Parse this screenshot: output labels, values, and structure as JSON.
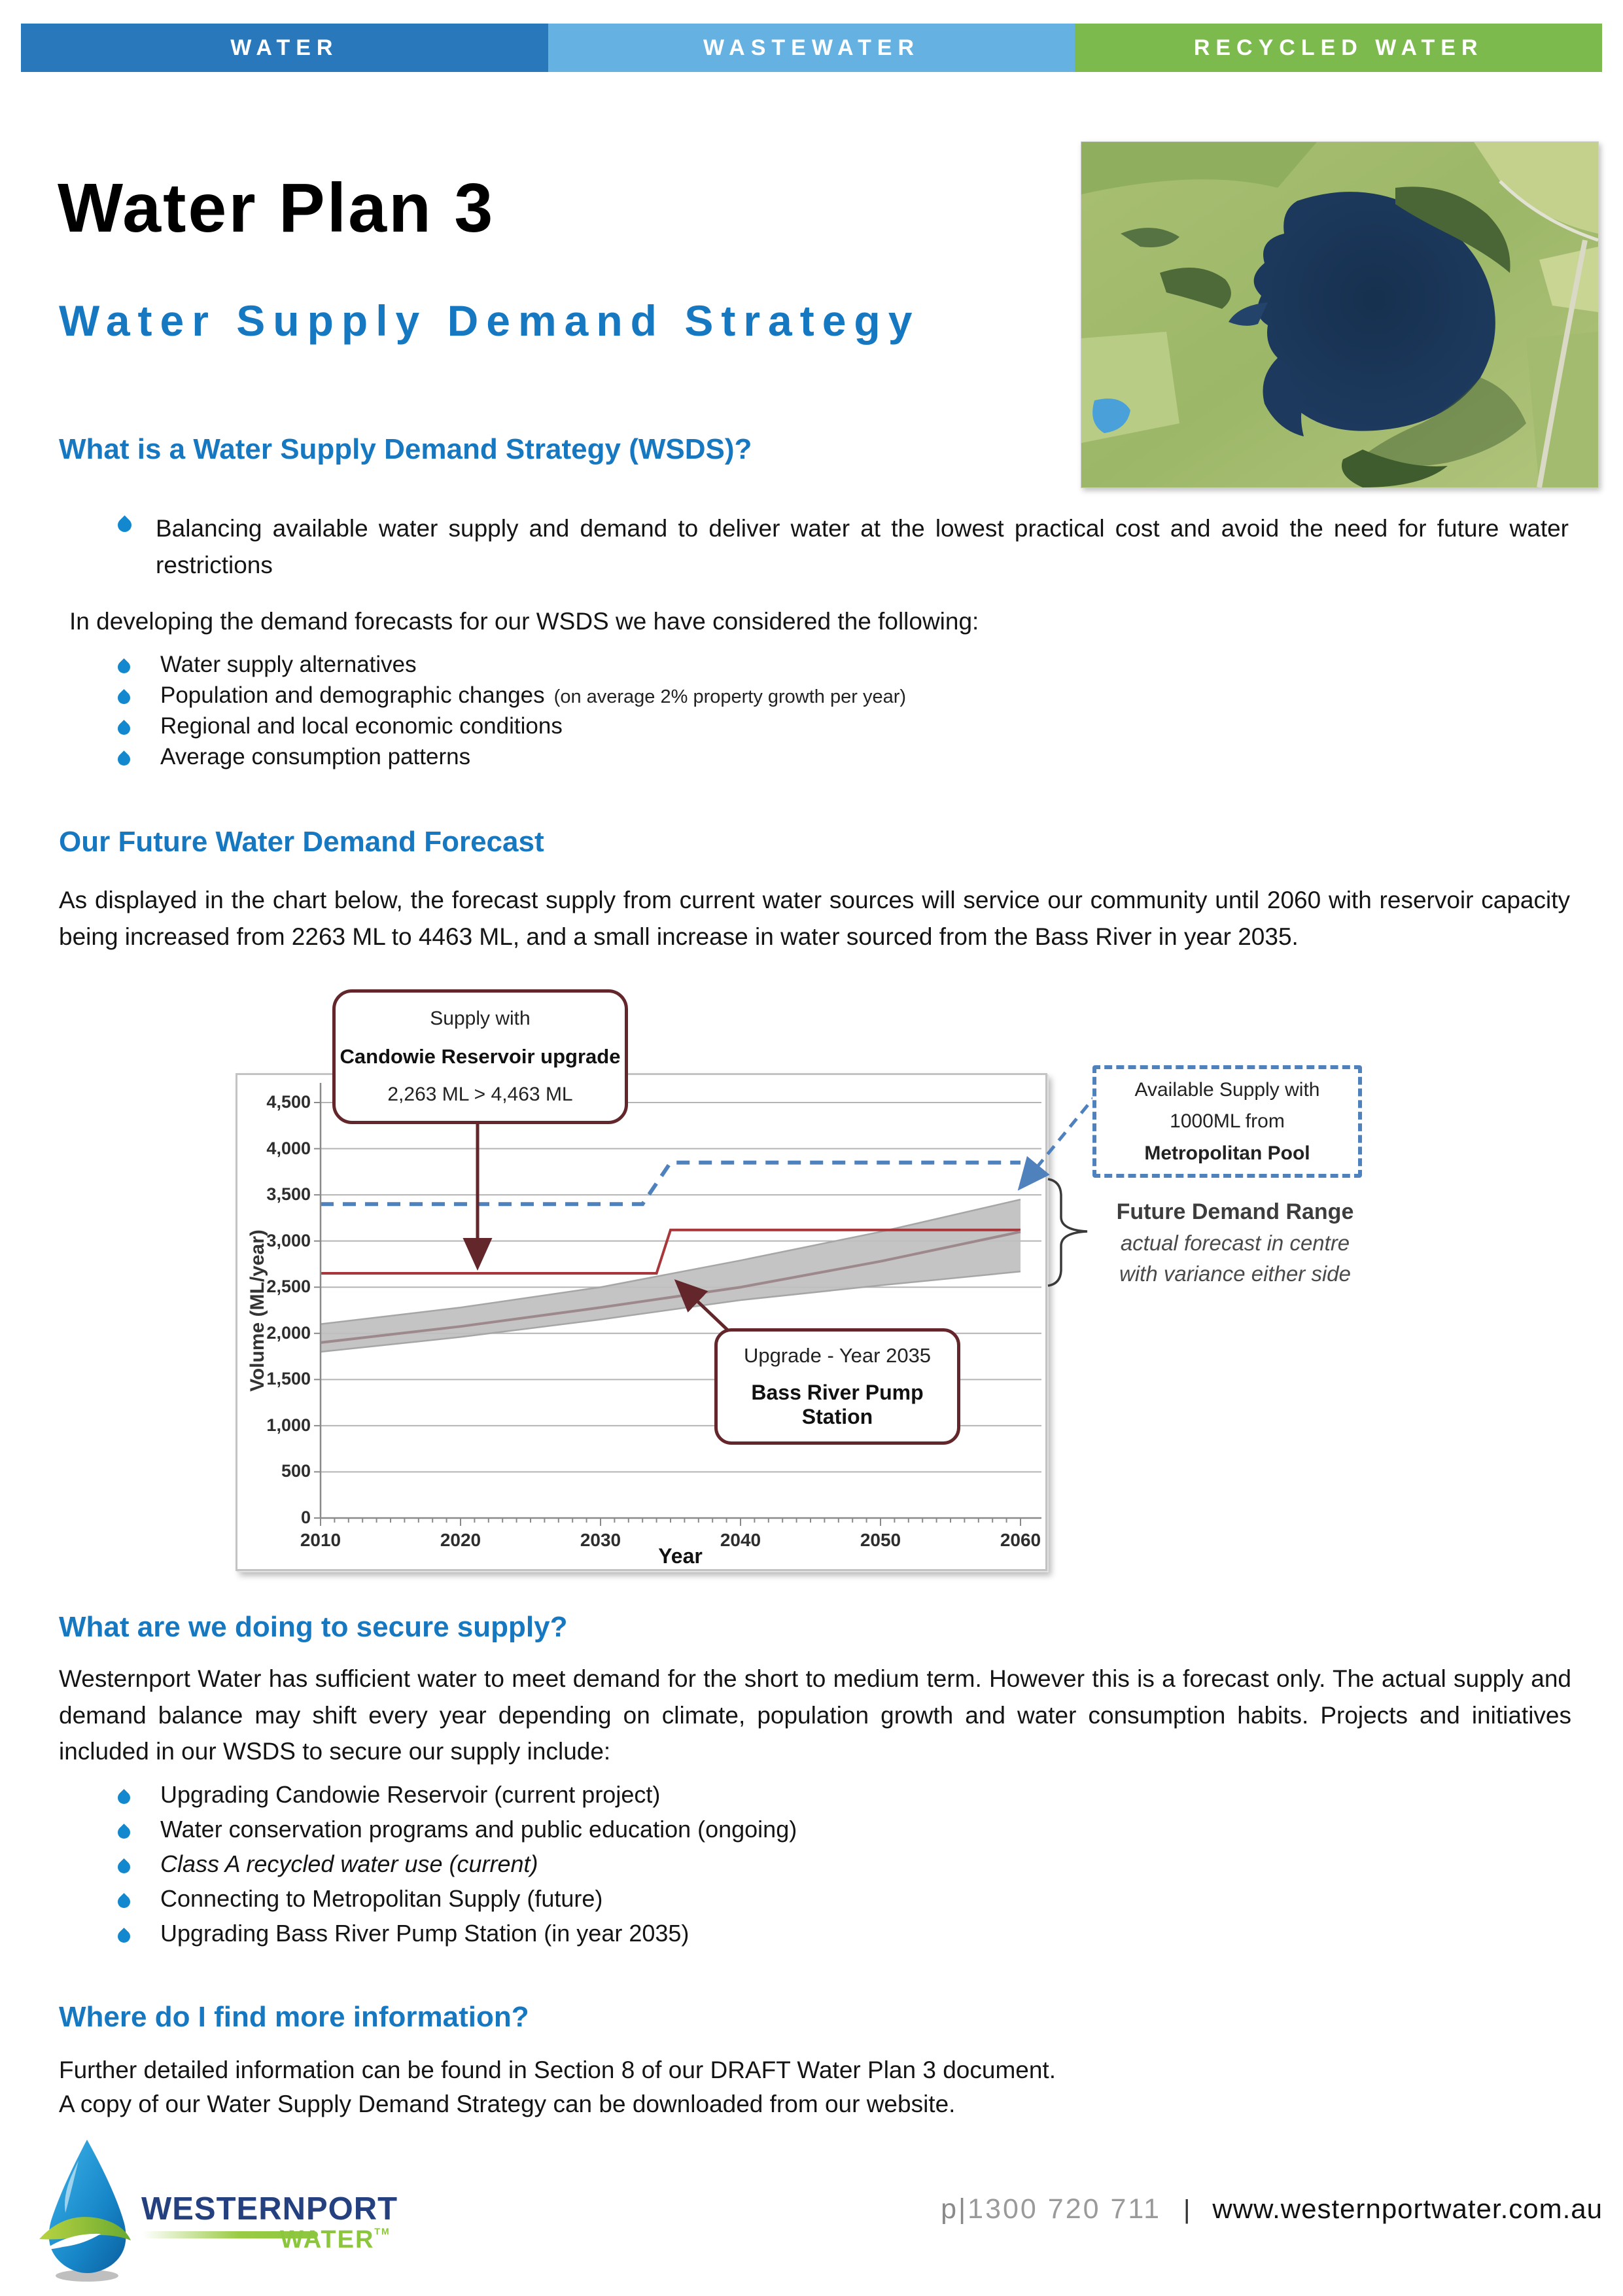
{
  "topbar": {
    "items": [
      {
        "label": "WATER",
        "color": "#2a78bc"
      },
      {
        "label": "WASTEWATER",
        "color": "#64b1e2"
      },
      {
        "label": "RECYCLED WATER",
        "color": "#7cba4d"
      }
    ]
  },
  "header": {
    "title": "Water Plan 3",
    "subtitle": "Water Supply Demand Strategy"
  },
  "sections": {
    "s1": {
      "heading": "What is a Water Supply Demand Strategy (WSDS)?",
      "lead_bullet": "Balancing available water supply and demand to deliver water at the lowest practical cost and avoid the need for future water restrictions",
      "intro": "In developing the demand forecasts for our WSDS we have considered the following:",
      "bullets": [
        {
          "text": "Water supply alternatives",
          "note": ""
        },
        {
          "text": "Population and demographic changes",
          "note": "(on average 2% property growth per year)"
        },
        {
          "text": "Regional and local economic conditions",
          "note": ""
        },
        {
          "text": "Average consumption patterns",
          "note": ""
        }
      ]
    },
    "s2": {
      "heading": "Our Future Water Demand Forecast",
      "para": "As displayed in the chart below, the forecast supply from current water sources will service our community until 2060 with reservoir capacity being increased from 2263 ML to 4463 ML, and a small increase in water sourced from the Bass River in year 2035."
    },
    "s3": {
      "heading": "What are we doing to secure supply?",
      "para": "Westernport Water has sufficient water to meet demand for the short to medium term. However this is a forecast only.  The actual supply and demand balance may shift every year depending on climate, population growth and water consumption habits.  Projects and initiatives included in our WSDS to secure our supply include:",
      "bullets": [
        {
          "text": "Upgrading Candowie Reservoir (current project)",
          "italic": false
        },
        {
          "text": "Water conservation programs and public education (ongoing)",
          "italic": false
        },
        {
          "text": "Class A recycled water use (current)",
          "italic": true
        },
        {
          "text": "Connecting to Metropolitan Supply (future)",
          "italic": false
        },
        {
          "text": "Upgrading Bass River Pump Station (in year 2035)",
          "italic": false
        }
      ]
    },
    "s4": {
      "heading": "Where do I find more information?",
      "line1": "Further detailed information can be found in Section 8 of our DRAFT Water Plan 3 document.",
      "line2": "A copy of our Water Supply Demand Strategy can be downloaded from our website."
    }
  },
  "chart_data": {
    "type": "line",
    "xlabel": "Year",
    "ylabel": "Volume (ML/year)",
    "xlim": [
      2010,
      2060
    ],
    "ylim": [
      0,
      4500
    ],
    "xticks": [
      2010,
      2020,
      2030,
      2040,
      2050,
      2060
    ],
    "yticks": [
      {
        "value": 0,
        "label": "0"
      },
      {
        "value": 500,
        "label": "500"
      },
      {
        "value": 1000,
        "label": "1,000"
      },
      {
        "value": 1500,
        "label": "1,500"
      },
      {
        "value": 2000,
        "label": "2,000"
      },
      {
        "value": 2500,
        "label": "2,500"
      },
      {
        "value": 3000,
        "label": "3,000"
      },
      {
        "value": 3500,
        "label": "3,500"
      },
      {
        "value": 4000,
        "label": "4,000"
      },
      {
        "value": 4500,
        "label": "4,500"
      }
    ],
    "grid": true,
    "series": [
      {
        "name": "available-supply-with-metropolitan-pool",
        "style": "dashed",
        "color": "#4f81bd",
        "points": [
          [
            2010,
            3400
          ],
          [
            2033,
            3400
          ],
          [
            2035,
            3850
          ],
          [
            2060,
            3850
          ]
        ]
      },
      {
        "name": "supply-with-candowie-upgrade",
        "style": "solid",
        "color": "#a8373b",
        "points": [
          [
            2010,
            2650
          ],
          [
            2034,
            2650
          ],
          [
            2035,
            3120
          ],
          [
            2060,
            3120
          ]
        ]
      },
      {
        "name": "demand-forecast-centre",
        "style": "solid",
        "color": "#9d898c",
        "points": [
          [
            2010,
            1900
          ],
          [
            2020,
            2075
          ],
          [
            2030,
            2280
          ],
          [
            2040,
            2500
          ],
          [
            2050,
            2780
          ],
          [
            2060,
            3100
          ]
        ]
      }
    ],
    "band": {
      "name": "future-demand-range",
      "color": "#c0bfbf",
      "edge_color": "#a6a6a6",
      "upper": [
        [
          2010,
          2100
        ],
        [
          2020,
          2280
        ],
        [
          2030,
          2500
        ],
        [
          2040,
          2790
        ],
        [
          2050,
          3100
        ],
        [
          2060,
          3450
        ]
      ],
      "lower": [
        [
          2010,
          1800
        ],
        [
          2020,
          1960
        ],
        [
          2030,
          2150
        ],
        [
          2040,
          2360
        ],
        [
          2050,
          2520
        ],
        [
          2060,
          2670
        ]
      ]
    },
    "annotations": {
      "candowie": {
        "line1": "Supply with",
        "line2": "Candowie Reservoir upgrade",
        "line3": "2,263 ML > 4,463 ML"
      },
      "metro": {
        "line1": "Available Supply with",
        "line2": "1000ML from",
        "line3": "Metropolitan Pool"
      },
      "upgrade": {
        "line1": "Upgrade - Year 2035",
        "line2": "Bass River Pump Station"
      },
      "demand_range": {
        "line1": "Future Demand Range",
        "line2": "actual forecast in centre",
        "line3": "with variance either side"
      }
    }
  },
  "footer": {
    "logo_name": "WESTERNPORT",
    "logo_water": "WATER",
    "logo_tm": "TM",
    "phone_label": "p|",
    "phone": "1300 720 711",
    "divider": "|",
    "website": "www.westernportwater.com.au"
  },
  "palette": {
    "heading_blue": "#1778c2",
    "maroon": "#63262b",
    "chart_blue": "#4f81bd",
    "supply_red": "#a8373b",
    "band_gray": "#c0bfbf",
    "droplet_blue": "#1488cf"
  }
}
